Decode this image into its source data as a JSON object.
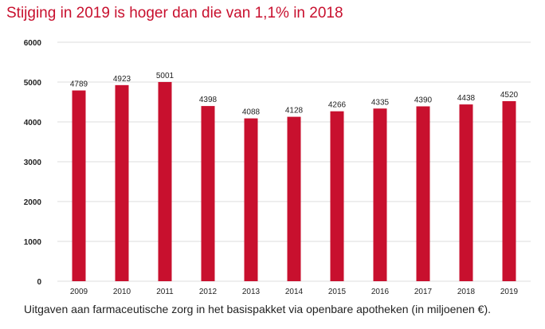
{
  "title": "Stijging in 2019 is hoger dan die van 1,1% in 2018",
  "caption": "Uitgaven aan farmaceutische zorg in het basispakket via openbare apotheken (in miljoenen €).",
  "chart_data": {
    "type": "bar",
    "categories": [
      "2009",
      "2010",
      "2011",
      "2012",
      "2013",
      "2014",
      "2015",
      "2016",
      "2017",
      "2018",
      "2019"
    ],
    "values": [
      4789,
      4923,
      5001,
      4398,
      4088,
      4128,
      4266,
      4335,
      4390,
      4438,
      4520
    ],
    "ylim": [
      0,
      6000
    ],
    "yticks": [
      0,
      1000,
      2000,
      3000,
      4000,
      5000,
      6000
    ],
    "grid": true,
    "bar_color": "#c8102e",
    "grid_color": "#dddddd"
  }
}
